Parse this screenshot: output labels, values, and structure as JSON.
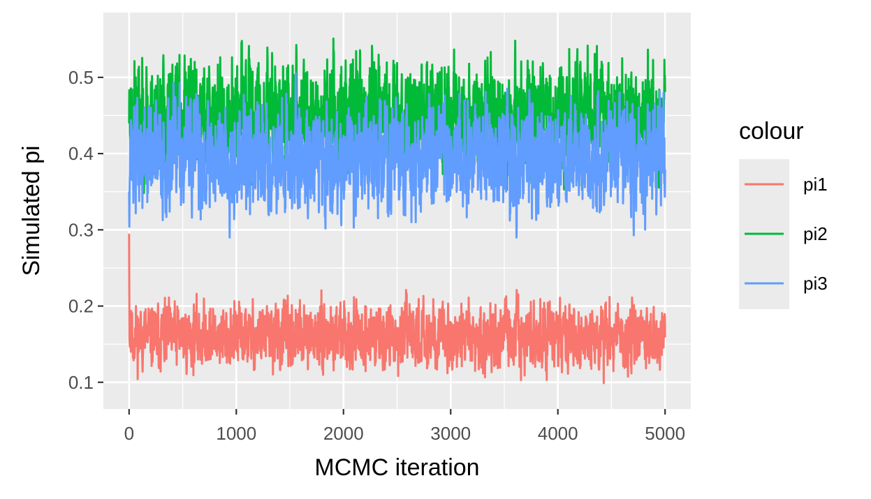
{
  "chart_data": {
    "type": "line",
    "title": "",
    "xlabel": "MCMC iteration",
    "ylabel": "Simulated pi",
    "xlim": [
      -240,
      5240
    ],
    "ylim": [
      0.065,
      0.585
    ],
    "x_ticks": [
      0,
      1000,
      2000,
      3000,
      4000,
      5000
    ],
    "x_tick_labels": [
      "0",
      "1000",
      "2000",
      "3000",
      "4000",
      "5000"
    ],
    "y_ticks": [
      0.1,
      0.2,
      0.3,
      0.4,
      0.5
    ],
    "y_tick_labels": [
      "0.1",
      "0.2",
      "0.3",
      "0.4",
      "0.5"
    ],
    "grid": true,
    "legend": {
      "title": "colour",
      "position": "right"
    },
    "n_iterations": 5000,
    "series": [
      {
        "name": "pi1",
        "color": "#F8766D",
        "center": 0.16,
        "spread": 0.02,
        "min": 0.085,
        "max": 0.24,
        "start": 0.295,
        "seed": 11
      },
      {
        "name": "pi2",
        "color": "#00BA38",
        "center": 0.45,
        "spread": 0.035,
        "min": 0.345,
        "max": 0.555,
        "start": 0.44,
        "seed": 23
      },
      {
        "name": "pi3",
        "color": "#619CFF",
        "center": 0.395,
        "spread": 0.035,
        "min": 0.29,
        "max": 0.52,
        "start": 0.35,
        "seed": 37
      }
    ]
  }
}
